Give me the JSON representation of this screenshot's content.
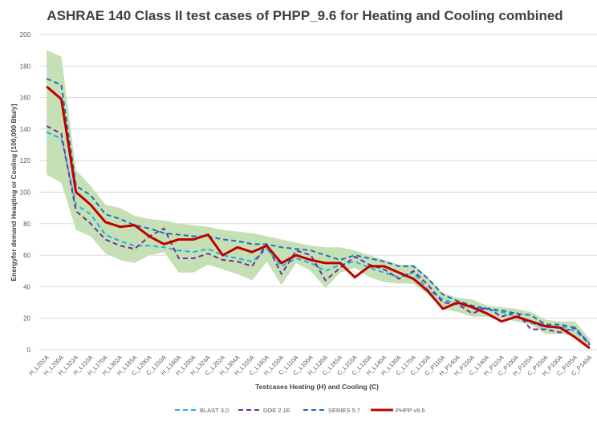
{
  "chart_data": {
    "type": "line",
    "title": "ASHRAE 140 Class II test cases of PHPP_9.6 for Heating and Cooling combined",
    "xlabel": "Testcases Heating (H) and  Cooling (C)",
    "ylabel": "Energyfor  demand Heaqting or Cooling [100,000 Btu/y]",
    "ylim": [
      0,
      200
    ],
    "yticks": [
      0,
      20,
      40,
      60,
      80,
      100,
      120,
      140,
      160,
      180,
      200
    ],
    "grid": true,
    "legend_position": "bottom",
    "categories": [
      "H_L202A",
      "H_L200A",
      "H_L322A",
      "H_L110A",
      "H_L170A",
      "H_L302A",
      "H_L165A",
      "C_L200A",
      "C_L150A",
      "H_L160A",
      "H_L100A",
      "H_L324A",
      "C_L202A",
      "H_L304A",
      "H_L155A",
      "C_L160A",
      "H_L150A",
      "C_L110A",
      "C_L100A",
      "H_L120A",
      "C_L165A",
      "C_L155A",
      "C_L120A",
      "H_L140A",
      "H_L130A",
      "C_L170A",
      "C_L130A",
      "C_P110A",
      "H_P140A",
      "H_P150A",
      "C_L140A",
      "H_P110A",
      "C_P100A",
      "H_P105A",
      "C_P150A",
      "H_P100A",
      "C_P105A",
      "C_P140A"
    ],
    "band": {
      "color": "#c5e0b4",
      "upper": [
        190,
        186,
        114,
        104,
        92,
        90,
        85,
        83,
        82,
        80,
        79,
        78,
        76,
        75,
        74,
        72,
        70,
        68,
        66,
        65,
        65,
        63,
        60,
        57,
        54,
        54,
        46,
        36,
        33,
        32,
        28,
        27,
        26,
        24,
        19,
        18,
        18,
        7
      ],
      "lower": [
        111,
        106,
        76,
        72,
        61,
        57,
        55,
        60,
        62,
        49,
        49,
        54,
        51,
        48,
        44,
        56,
        41,
        55,
        50,
        39,
        49,
        52,
        46,
        43,
        42,
        42,
        35,
        26,
        24,
        21,
        21,
        20,
        18,
        16,
        10,
        10,
        9,
        0
      ]
    },
    "series": [
      {
        "name": "BLAST 3.0",
        "color": "#1fb0e6",
        "style": "dashed",
        "values": [
          138,
          134,
          92,
          86,
          73,
          69,
          66,
          66,
          65,
          63,
          62,
          64,
          60,
          58,
          56,
          64,
          53,
          58,
          55,
          50,
          54,
          56,
          52,
          49,
          46,
          49,
          38,
          32,
          29,
          27,
          26,
          24,
          21,
          17,
          14,
          15,
          12,
          4
        ]
      },
      {
        "name": "DOE 2.1E",
        "color": "#7030a0",
        "style": "dashed",
        "values": [
          142,
          137,
          88,
          80,
          70,
          66,
          64,
          72,
          77,
          58,
          58,
          61,
          57,
          56,
          53,
          67,
          48,
          63,
          60,
          44,
          52,
          59,
          54,
          51,
          45,
          50,
          41,
          30,
          29,
          23,
          27,
          21,
          24,
          13,
          13,
          11,
          14,
          3
        ]
      },
      {
        "name": "SERIES 5.7",
        "color": "#1f6fbf",
        "style": "dashed",
        "values": [
          172,
          168,
          104,
          98,
          86,
          83,
          79,
          77,
          74,
          73,
          72,
          72,
          70,
          69,
          67,
          67,
          65,
          64,
          63,
          60,
          57,
          60,
          58,
          56,
          53,
          53,
          45,
          35,
          31,
          28,
          26,
          25,
          23,
          22,
          16,
          16,
          14,
          4
        ]
      },
      {
        "name": "PHPP v9.6",
        "color": "#c00000",
        "style": "solid",
        "values": [
          167,
          159,
          100,
          92,
          81,
          78,
          79,
          72,
          67,
          70,
          70,
          73,
          60,
          65,
          62,
          66,
          55,
          60,
          57,
          55,
          55,
          46,
          53,
          53,
          49,
          45,
          37,
          26,
          30,
          27,
          23,
          18,
          21,
          18,
          15,
          14,
          8,
          1
        ]
      }
    ]
  }
}
